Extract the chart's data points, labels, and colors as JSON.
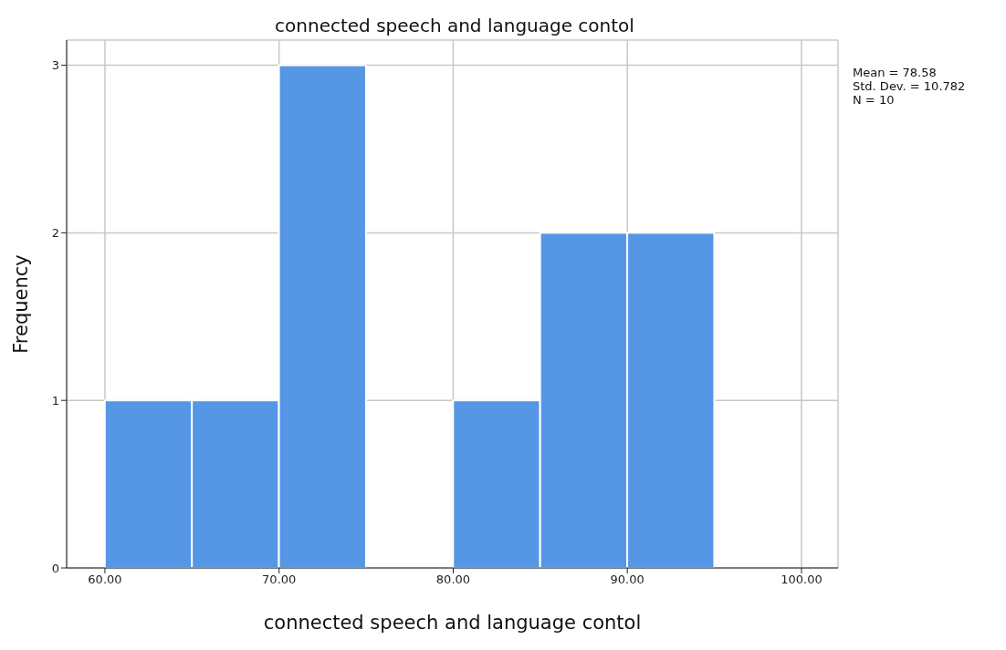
{
  "chart_data": {
    "type": "histogram",
    "title": "connected speech and language contol",
    "xlabel": "connected speech and language contol",
    "ylabel": "Frequency",
    "bins": [
      60,
      65,
      70,
      75,
      80,
      85,
      90,
      95
    ],
    "values": [
      1,
      1,
      3,
      0,
      1,
      2,
      2
    ],
    "color": "#5596e5",
    "xlim": [
      57.8,
      102.1
    ],
    "xticks": [
      {
        "value": 60,
        "label": "60.00"
      },
      {
        "value": 70,
        "label": "70.00"
      },
      {
        "value": 80,
        "label": "80.00"
      },
      {
        "value": 90,
        "label": "90.00"
      },
      {
        "value": 100,
        "label": "100.00"
      }
    ],
    "ylim": [
      0,
      3.15
    ],
    "yticks": [
      0,
      1,
      2,
      3
    ],
    "grid": true,
    "annotations": [
      "Mean = 78.58",
      "Std. Dev. = 10.782",
      "N = 10"
    ]
  }
}
